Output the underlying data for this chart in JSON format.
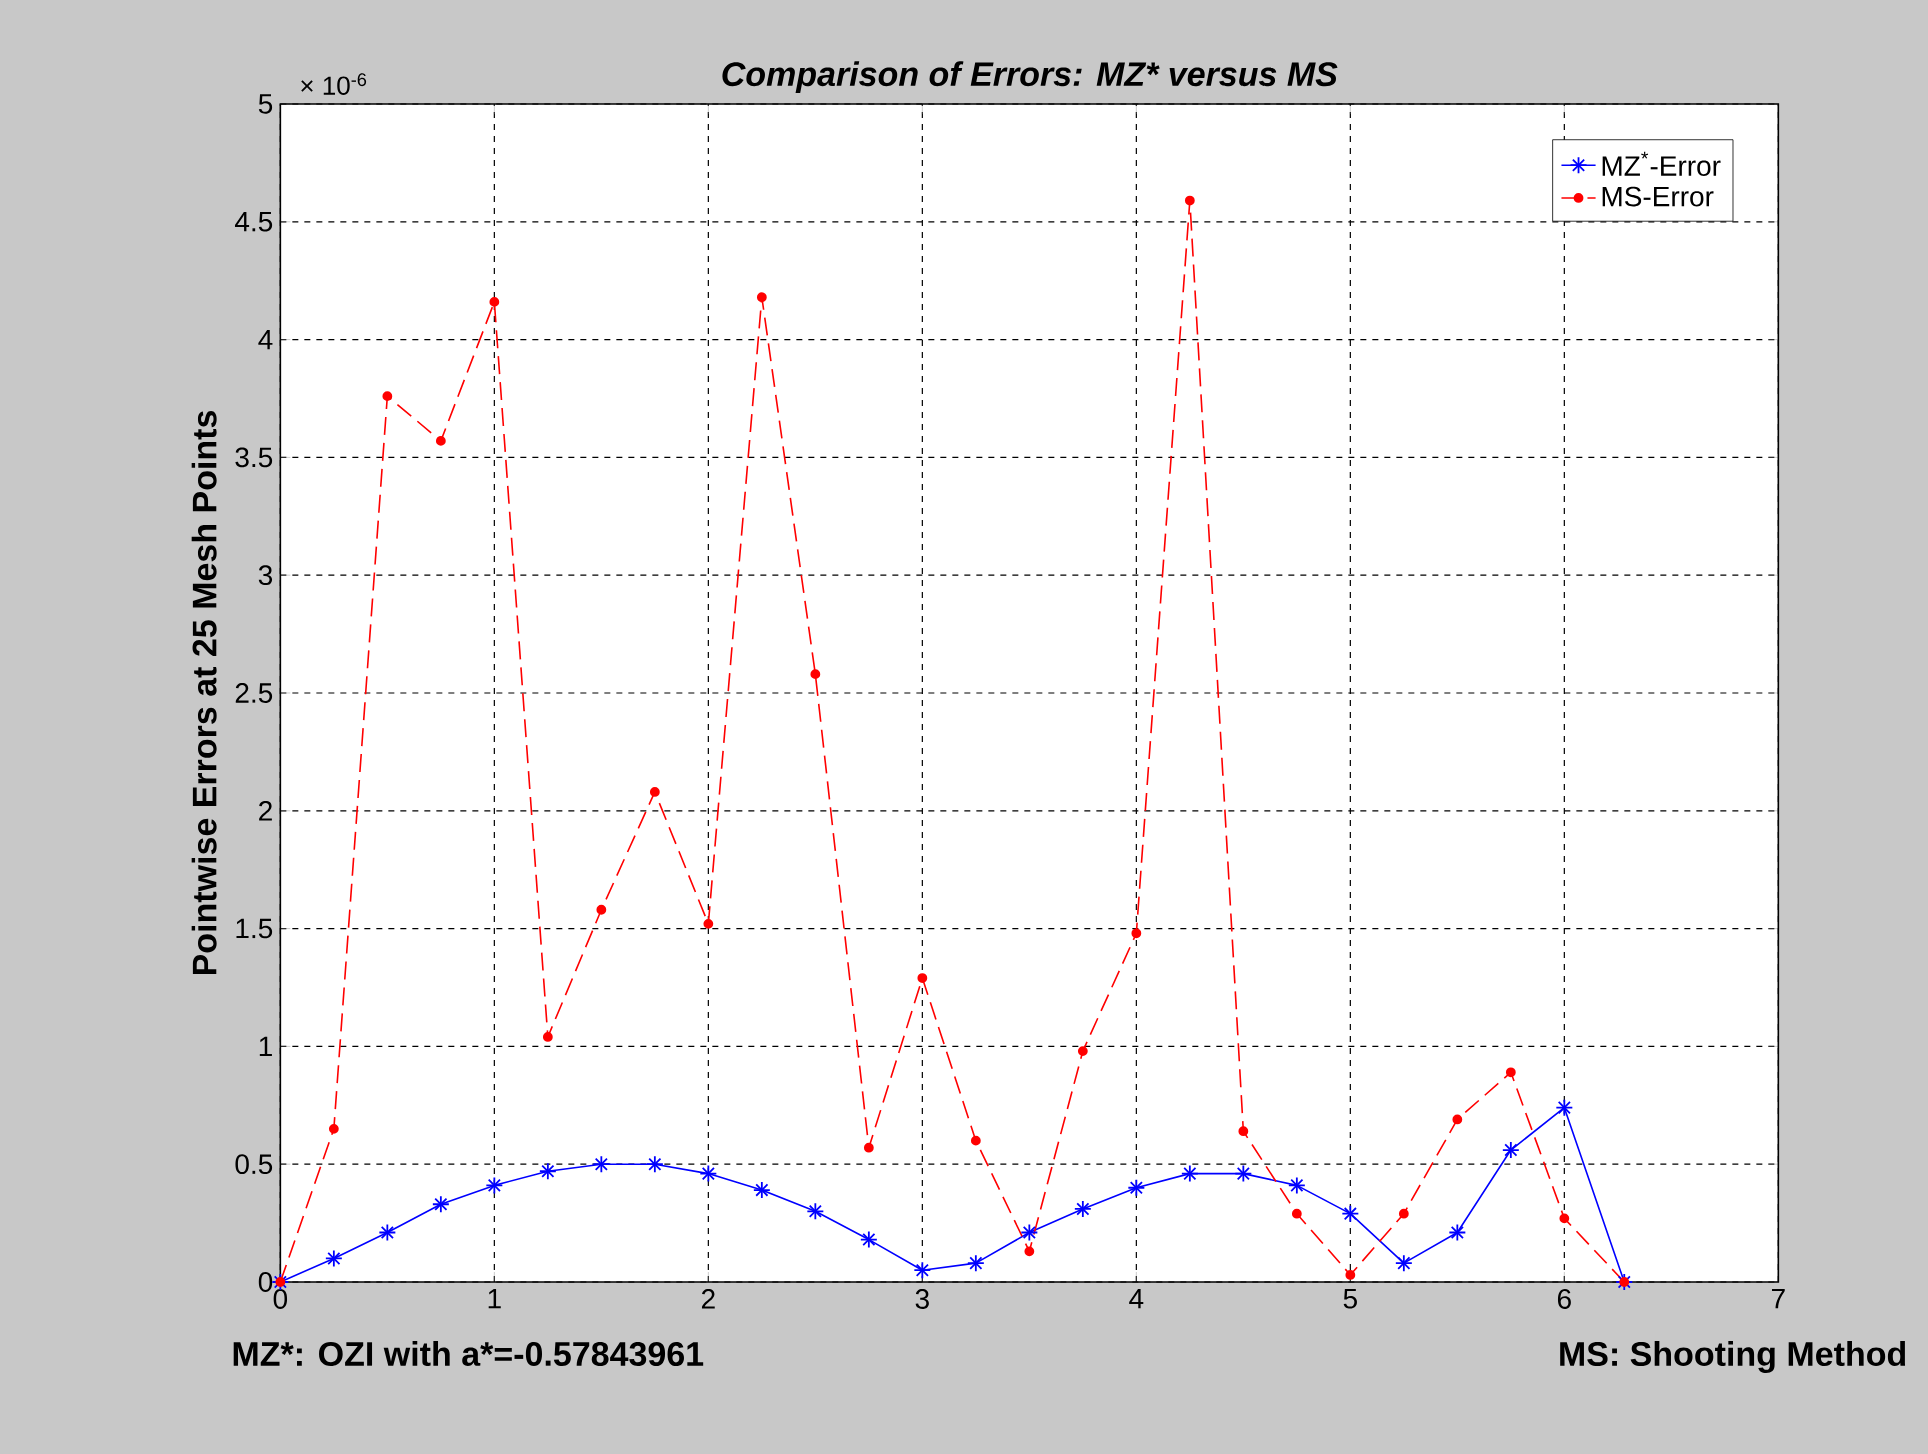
{
  "chart_data": {
    "type": "line",
    "title": "Comparison of Errors: MZ* versus MS",
    "ylabel": "Pointwise Errors at 25 Mesh Points",
    "x": [
      0,
      0.25,
      0.5,
      0.75,
      1.0,
      1.25,
      1.5,
      1.75,
      2.0,
      2.25,
      2.5,
      2.75,
      3.0,
      3.25,
      3.5,
      3.75,
      4.0,
      4.25,
      4.5,
      4.75,
      5.0,
      5.25,
      5.5,
      5.75,
      6.0,
      6.28
    ],
    "series": [
      {
        "name": "MZ$^{*}$-Error",
        "color": "#0000ff",
        "marker": "cross",
        "line_style": "solid",
        "values": [
          0,
          0.1,
          0.21,
          0.33,
          0.41,
          0.47,
          0.5,
          0.5,
          0.46,
          0.39,
          0.3,
          0.18,
          0.05,
          0.08,
          0.21,
          0.31,
          0.4,
          0.46,
          0.46,
          0.41,
          0.29,
          0.08,
          0.21,
          0.56,
          0.74,
          0
        ]
      },
      {
        "name": "MS-Error",
        "color": "#ff0000",
        "marker": "circle",
        "line_style": "dashed",
        "values": [
          0,
          0.65,
          3.76,
          3.57,
          4.16,
          1.04,
          1.58,
          2.08,
          1.52,
          4.18,
          2.58,
          0.57,
          1.29,
          0.6,
          0.13,
          0.98,
          1.48,
          4.59,
          0.64,
          0.29,
          0.03,
          0.29,
          0.69,
          0.89,
          0.27,
          0
        ]
      }
    ],
    "xlim": [
      0,
      7
    ],
    "xticks": [
      0,
      1,
      2,
      3,
      4,
      5,
      6,
      7
    ],
    "ylim": [
      0,
      5
    ],
    "yticks": [
      0,
      0.5,
      1,
      1.5,
      2,
      2.5,
      3,
      3.5,
      4,
      4.5,
      5
    ],
    "grid": true,
    "legend": "top right",
    "annotations": [
      "× 10$^{-6}$",
      "MZ*: OZI with a*=-0.57843961",
      "MS: Shooting Method"
    ]
  }
}
